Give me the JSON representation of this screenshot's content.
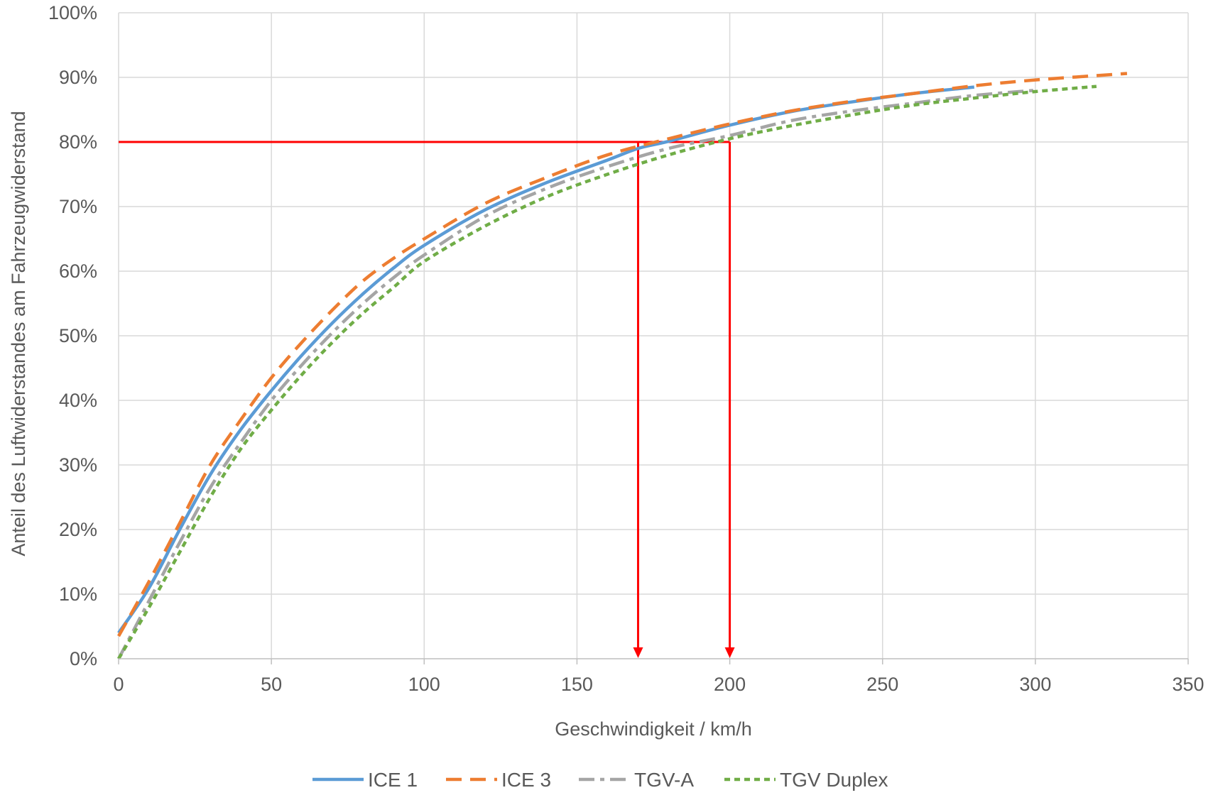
{
  "chart_data": {
    "type": "line",
    "xlabel": "Geschwindigkeit / km/h",
    "ylabel": "Anteil des Luftwiderstandes am Fahrzeugwiderstand",
    "xlim": [
      0,
      350
    ],
    "ylim": [
      0,
      100
    ],
    "x_ticks": [
      "0",
      "50",
      "100",
      "150",
      "200",
      "250",
      "300",
      "350"
    ],
    "x_tick_values": [
      0,
      50,
      100,
      150,
      200,
      250,
      300,
      350
    ],
    "y_ticks": [
      "0%",
      "10%",
      "20%",
      "30%",
      "40%",
      "50%",
      "60%",
      "70%",
      "80%",
      "90%",
      "100%"
    ],
    "y_tick_values": [
      0,
      10,
      20,
      30,
      40,
      50,
      60,
      70,
      80,
      90,
      100
    ],
    "grid": true,
    "legend_position": "bottom",
    "series": [
      {
        "name": "ICE 1",
        "color": "#5B9BD5",
        "dash": "solid",
        "x": [
          0,
          10,
          20,
          30,
          40,
          50,
          60,
          70,
          80,
          90,
          100,
          120,
          140,
          160,
          170,
          180,
          200,
          220,
          240,
          260,
          280
        ],
        "y": [
          4,
          11,
          20,
          28.5,
          35.5,
          41.5,
          47,
          52,
          56.5,
          60.5,
          64,
          69.5,
          73.7,
          77.2,
          79,
          80.1,
          82.6,
          84.7,
          86.2,
          87.5,
          88.5
        ]
      },
      {
        "name": "ICE 3",
        "color": "#ED7D31",
        "dash": "long-dash",
        "x": [
          0,
          10,
          20,
          30,
          40,
          50,
          60,
          70,
          80,
          90,
          100,
          120,
          140,
          160,
          180,
          200,
          220,
          240,
          260,
          280,
          300,
          330
        ],
        "y": [
          3.5,
          12,
          21,
          30,
          37,
          43.5,
          49,
          54,
          58.5,
          62,
          65,
          70.5,
          74.5,
          78,
          80.5,
          82.8,
          84.8,
          86.3,
          87.5,
          88.7,
          89.6,
          90.6
        ]
      },
      {
        "name": "TGV-A",
        "color": "#A5A5A5",
        "dash": "dash-dot",
        "x": [
          0,
          10,
          20,
          30,
          40,
          50,
          60,
          70,
          80,
          90,
          100,
          120,
          140,
          160,
          180,
          200,
          220,
          240,
          260,
          280,
          300
        ],
        "y": [
          0,
          9,
          18,
          26.5,
          33.5,
          40,
          45.5,
          50.5,
          55,
          59,
          62.5,
          68.5,
          72.8,
          76.2,
          79,
          81,
          83.3,
          84.8,
          86,
          87.2,
          88
        ]
      },
      {
        "name": "TGV Duplex",
        "color": "#70AD47",
        "dash": "short-dash",
        "x": [
          0,
          10,
          20,
          30,
          40,
          50,
          60,
          70,
          80,
          90,
          100,
          120,
          140,
          160,
          180,
          200,
          220,
          240,
          260,
          280,
          300,
          320
        ],
        "y": [
          0,
          8,
          16.5,
          25,
          32.5,
          38.5,
          44,
          49,
          53.5,
          57.5,
          61.5,
          67,
          71.5,
          75,
          78,
          80.5,
          82.5,
          84.2,
          85.7,
          86.8,
          87.8,
          88.6
        ]
      }
    ],
    "annotations": [
      {
        "type": "h-line",
        "color": "#FF0000",
        "y": 80,
        "x_from": 0,
        "x_to": 200
      },
      {
        "type": "arrow-down",
        "color": "#FF0000",
        "x": 170,
        "y_from": 80,
        "y_to": 0
      },
      {
        "type": "arrow-down",
        "color": "#FF0000",
        "x": 200,
        "y_from": 80,
        "y_to": 0
      }
    ]
  }
}
